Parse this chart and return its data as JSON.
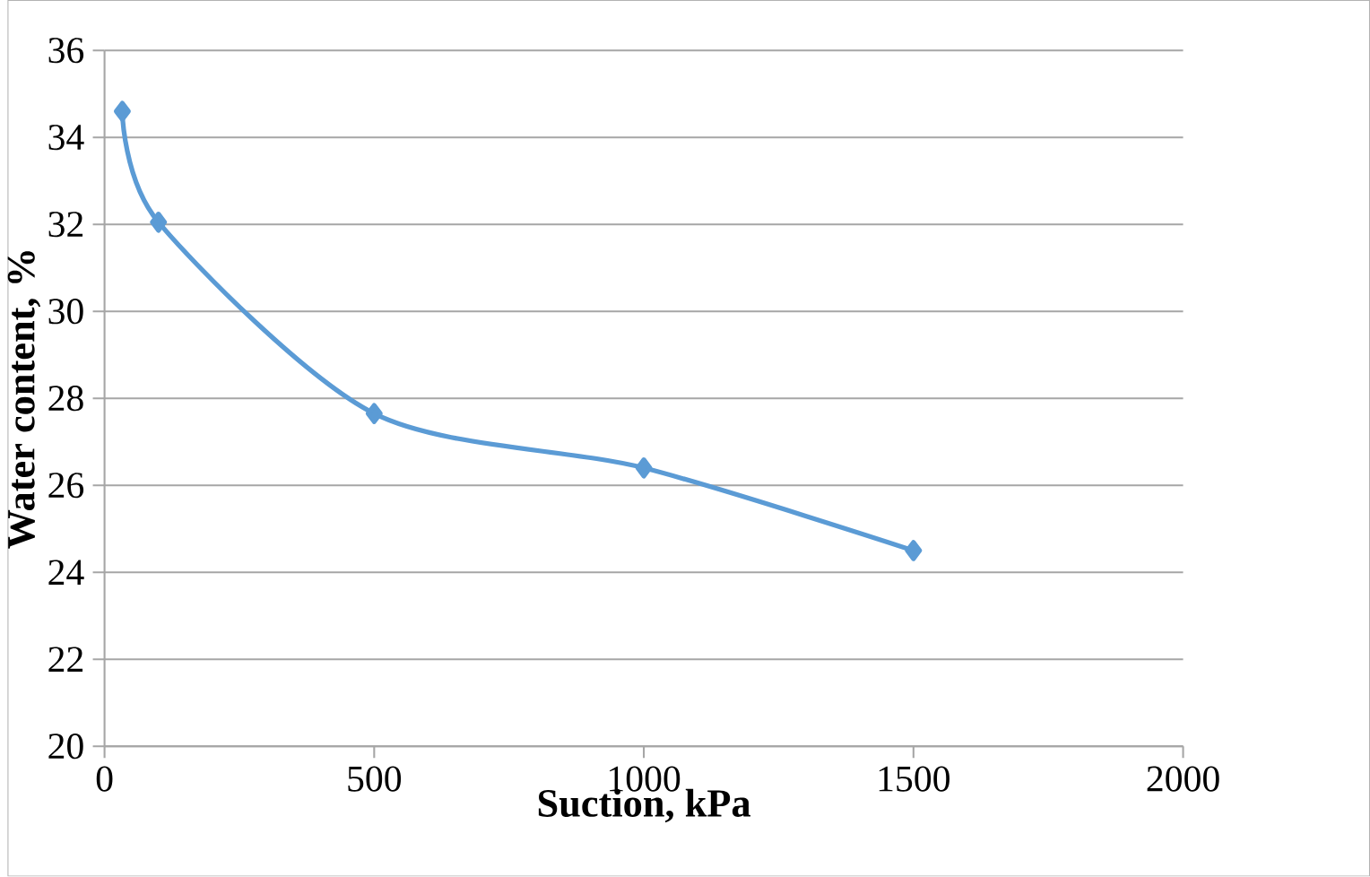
{
  "chart_data": {
    "type": "line",
    "xlabel": "Suction, kPa",
    "ylabel": "Water content, %",
    "x": [
      33,
      100,
      500,
      1000,
      1500
    ],
    "series": [
      {
        "color": "#5b9bd5",
        "values": [
          34.6,
          32.05,
          27.65,
          26.4,
          24.5
        ]
      }
    ],
    "xlim": [
      0,
      2000
    ],
    "ylim": [
      20,
      36
    ],
    "xticks": [
      0,
      500,
      1000,
      1500,
      2000
    ],
    "yticks": [
      20,
      22,
      24,
      26,
      28,
      30,
      32,
      34,
      36
    ],
    "grid": "y",
    "marker": "diamond",
    "line_style": "solid"
  }
}
